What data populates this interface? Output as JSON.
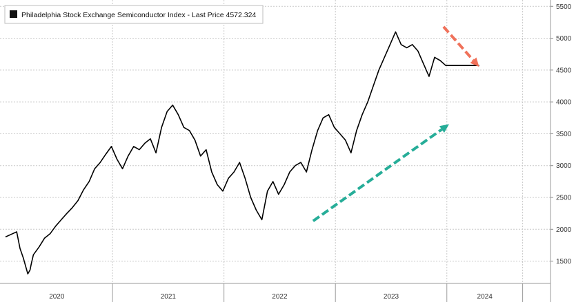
{
  "chart_data": {
    "type": "line",
    "legend": "Philadelphia Stock Exchange Semiconductor Index - Last Price 4572.324",
    "legend_position": "top-left",
    "grid": true,
    "x_range": [
      2019.5,
      2024.39
    ],
    "ylim": [
      1150,
      5600
    ],
    "y_ticks": [
      1500,
      2000,
      2500,
      3000,
      3500,
      4000,
      4500,
      5000,
      5500
    ],
    "x_labels": [
      {
        "label": "2020",
        "at": 2019.96
      },
      {
        "label": "2021",
        "at": 2020.96
      },
      {
        "label": "2022",
        "at": 2021.96
      },
      {
        "label": "2023",
        "at": 2022.96
      },
      {
        "label": "2024",
        "at": 2023.8
      }
    ],
    "x_boundaries": [
      2020.46,
      2021.46,
      2022.46,
      2023.46,
      2024.14
    ],
    "series": [
      {
        "color": "#000000",
        "x": [
          2019.5,
          2019.55,
          2019.6,
          2019.63,
          2019.66,
          2019.7,
          2019.72,
          2019.73,
          2019.75,
          2019.8,
          2019.85,
          2019.9,
          2019.95,
          2020.0,
          2020.05,
          2020.1,
          2020.15,
          2020.2,
          2020.25,
          2020.3,
          2020.35,
          2020.4,
          2020.45,
          2020.5,
          2020.55,
          2020.6,
          2020.65,
          2020.7,
          2020.75,
          2020.8,
          2020.85,
          2020.9,
          2020.95,
          2021.0,
          2021.05,
          2021.1,
          2021.15,
          2021.2,
          2021.25,
          2021.3,
          2021.35,
          2021.4,
          2021.45,
          2021.5,
          2021.55,
          2021.6,
          2021.65,
          2021.7,
          2021.75,
          2021.8,
          2021.85,
          2021.9,
          2021.95,
          2022.0,
          2022.05,
          2022.1,
          2022.15,
          2022.2,
          2022.25,
          2022.3,
          2022.35,
          2022.4,
          2022.45,
          2022.5,
          2022.55,
          2022.6,
          2022.65,
          2022.7,
          2022.75,
          2022.8,
          2022.85,
          2022.9,
          2022.95,
          2023.0,
          2023.05,
          2023.1,
          2023.15,
          2023.2,
          2023.25,
          2023.3,
          2023.35,
          2023.4,
          2023.45,
          2023.5,
          2023.55,
          2023.6,
          2023.62,
          2023.65,
          2023.68,
          2023.7,
          2023.72,
          2023.75
        ],
        "y": [
          1880,
          1920,
          1960,
          1700,
          1550,
          1300,
          1360,
          1450,
          1600,
          1720,
          1860,
          1930,
          2050,
          2150,
          2250,
          2340,
          2450,
          2620,
          2750,
          2950,
          3050,
          3180,
          3300,
          3100,
          2950,
          3150,
          3300,
          3250,
          3350,
          3420,
          3200,
          3600,
          3850,
          3950,
          3800,
          3600,
          3550,
          3400,
          3150,
          3250,
          2900,
          2700,
          2600,
          2800,
          2900,
          3050,
          2800,
          2500,
          2300,
          2150,
          2600,
          2750,
          2550,
          2700,
          2900,
          3000,
          3050,
          2900,
          3250,
          3550,
          3750,
          3800,
          3600,
          3500,
          3400,
          3200,
          3550,
          3800,
          4000,
          4250,
          4500,
          4700,
          4900,
          5100,
          4900,
          4850,
          4900,
          4800,
          4600,
          4400,
          4700,
          4650,
          4572,
          4572,
          4572,
          4572,
          4572,
          4572,
          4572,
          4572,
          4572,
          4572
        ]
      }
    ],
    "annotations": [
      {
        "type": "arrow",
        "color": "#26ad98",
        "from": [
          2022.26,
          2130
        ],
        "to": [
          2023.48,
          3650
        ]
      },
      {
        "type": "arrow",
        "color": "#f0715a",
        "from": [
          2023.43,
          5180
        ],
        "to": [
          2023.75,
          4550
        ]
      }
    ]
  }
}
